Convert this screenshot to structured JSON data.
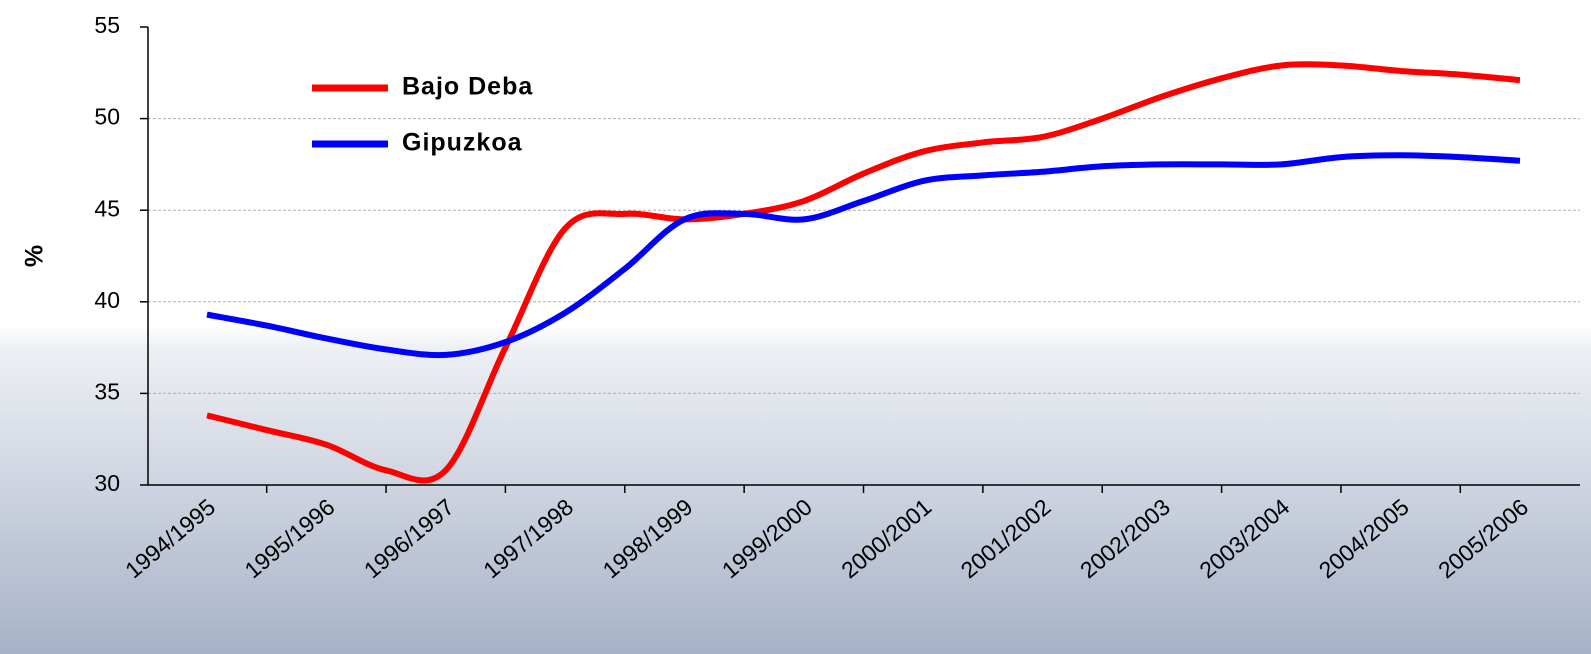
{
  "chart_data": {
    "type": "line",
    "y_label": "%",
    "categories": [
      "1994/1995",
      null,
      "1995/1996",
      null,
      "1996/1997",
      null,
      "1997/1998",
      null,
      "1998/1999",
      null,
      "1999/2000",
      null,
      "2000/2001",
      null,
      "2001/2002",
      null,
      "2002/2003",
      null,
      "2003/2004",
      null,
      "2004/2005",
      null,
      "2005/2006"
    ],
    "series": [
      {
        "name": "Bajo Deba",
        "color": "#ff0000",
        "values": [
          33.8,
          33.0,
          32.2,
          30.8,
          30.8,
          37.5,
          44.0,
          44.8,
          44.5,
          44.8,
          45.5,
          47.0,
          48.2,
          48.7,
          49.0,
          50.0,
          51.2,
          52.2,
          52.9,
          52.9,
          52.6,
          52.4,
          52.1
        ]
      },
      {
        "name": "Gipuzkoa",
        "color": "#0000ff",
        "values": [
          39.3,
          38.7,
          38.0,
          37.4,
          37.1,
          37.8,
          39.4,
          41.8,
          44.5,
          44.8,
          44.5,
          45.5,
          46.6,
          46.9,
          47.1,
          47.4,
          47.5,
          47.5,
          47.5,
          47.9,
          48.0,
          47.9,
          47.7
        ]
      }
    ],
    "ylim": [
      30,
      55
    ],
    "yticks": [
      30,
      35,
      40,
      45,
      50,
      55
    ],
    "grid": true,
    "legend": "upper left",
    "smooth": true
  }
}
